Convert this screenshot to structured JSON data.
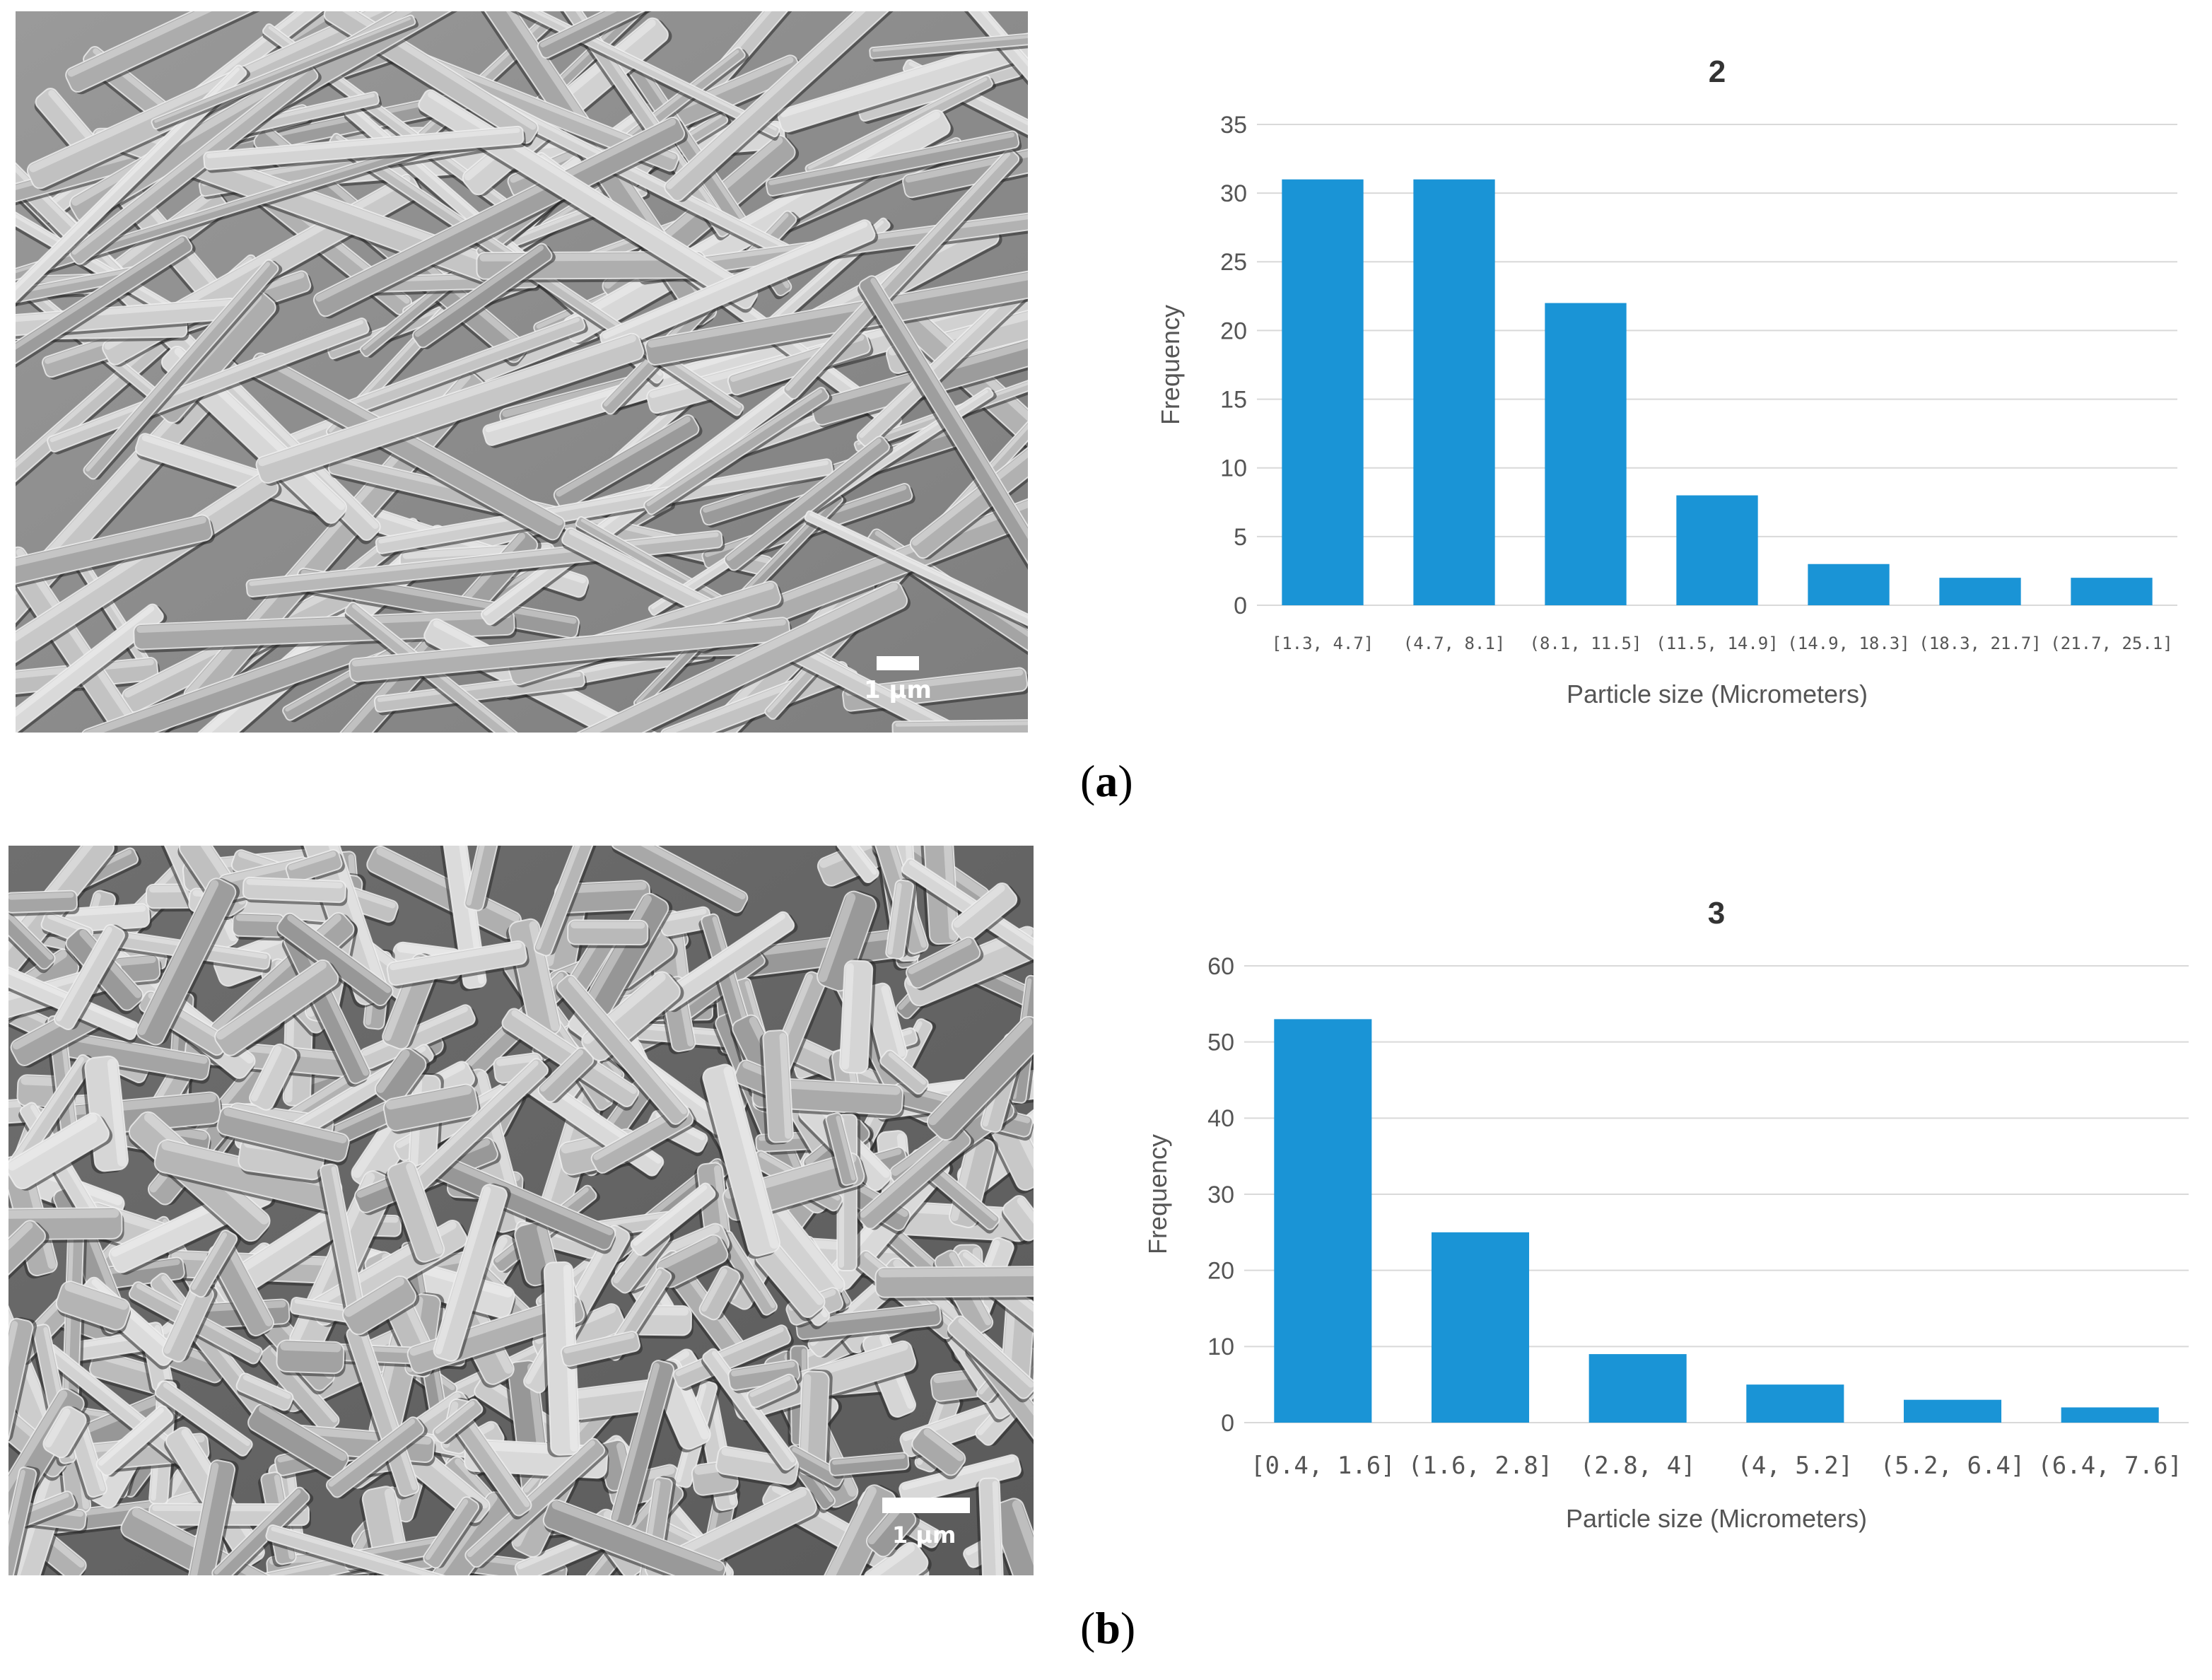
{
  "panels": [
    {
      "label": "a",
      "sem": {
        "scale_label": "1 µm",
        "style": "long-needles"
      },
      "chart_data": {
        "type": "bar",
        "title": "2",
        "xlabel": "Particle size  (Micrometers)",
        "ylabel": "Frequency",
        "categories": [
          "[1.3, 4.7]",
          "(4.7, 8.1]",
          "(8.1, 11.5]",
          "(11.5, 14.9]",
          "(14.9, 18.3]",
          "(18.3, 21.7]",
          "(21.7, 25.1]"
        ],
        "values": [
          31,
          31,
          22,
          8,
          3,
          2,
          2
        ],
        "ylim": [
          0,
          35
        ],
        "yticks": [
          0,
          5,
          10,
          15,
          20,
          25,
          30,
          35
        ],
        "grid": true,
        "bar_color": "#1a94d6"
      }
    },
    {
      "label": "b",
      "sem": {
        "scale_label": "1 µm",
        "style": "short-rods"
      },
      "chart_data": {
        "type": "bar",
        "title": "3",
        "xlabel": "Particle size  (Micrometers)",
        "ylabel": "Frequency",
        "categories": [
          "[0.4, 1.6]",
          "(1.6, 2.8]",
          "(2.8, 4]",
          "(4, 5.2]",
          "(5.2, 6.4]",
          "(6.4, 7.6]"
        ],
        "values": [
          53,
          25,
          9,
          5,
          3,
          2
        ],
        "ylim": [
          0,
          60
        ],
        "yticks": [
          0,
          10,
          20,
          30,
          40,
          50,
          60
        ],
        "grid": true,
        "bar_color": "#1a94d6"
      }
    }
  ]
}
